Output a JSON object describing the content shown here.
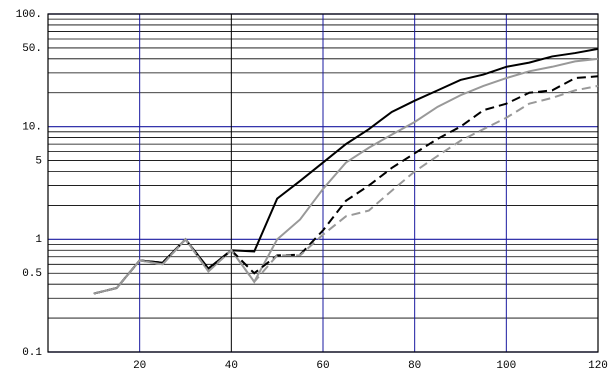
{
  "chart_data": {
    "type": "line",
    "x": [
      10,
      15,
      20,
      25,
      30,
      35,
      40,
      45,
      50,
      55,
      60,
      65,
      70,
      75,
      80,
      85,
      90,
      95,
      100,
      105,
      110,
      115,
      120
    ],
    "series": [
      {
        "color": "#000000",
        "dash": false,
        "values": [
          0.33,
          0.37,
          0.65,
          0.62,
          1.0,
          0.55,
          0.8,
          0.78,
          2.3,
          3.3,
          4.8,
          7,
          9.5,
          13.5,
          17,
          21,
          26,
          29,
          34,
          37,
          42,
          45,
          49
        ]
      },
      {
        "color": "#999999",
        "dash": false,
        "values": [
          0.33,
          0.37,
          0.65,
          0.6,
          1.0,
          0.52,
          0.8,
          0.42,
          1.0,
          1.5,
          2.8,
          4.8,
          6.5,
          8.5,
          11,
          15,
          19,
          23,
          27,
          31,
          34,
          38,
          40
        ]
      },
      {
        "color": "#000000",
        "dash": true,
        "values": [
          0.33,
          0.37,
          0.65,
          0.62,
          1.0,
          0.55,
          0.8,
          0.5,
          0.72,
          0.73,
          1.2,
          2.2,
          3.0,
          4.3,
          5.8,
          7.8,
          10,
          14,
          16,
          20,
          21,
          27,
          28
        ]
      },
      {
        "color": "#999999",
        "dash": true,
        "values": [
          0.33,
          0.37,
          0.65,
          0.6,
          1.0,
          0.52,
          0.8,
          0.42,
          0.72,
          0.72,
          1.1,
          1.6,
          1.8,
          2.7,
          4,
          5.5,
          7.5,
          9.5,
          12,
          16,
          18,
          21,
          23
        ]
      }
    ],
    "xlim": [
      0,
      120
    ],
    "xticks": [
      20,
      40,
      60,
      80,
      100,
      120
    ],
    "ylim": [
      0.1,
      100
    ],
    "log_y": true,
    "yticks": [
      {
        "value": 100,
        "label": "100."
      },
      {
        "value": 50,
        "label": "50."
      },
      {
        "value": 10,
        "label": "10."
      },
      5,
      1,
      0.5,
      0.1
    ],
    "minor_yticks": [
      0.2,
      0.3,
      0.4,
      0.6,
      0.7,
      0.8,
      0.9,
      2,
      3,
      4,
      6,
      7,
      8,
      9,
      20,
      30,
      40,
      60,
      70,
      80,
      90
    ],
    "grid": true
  }
}
